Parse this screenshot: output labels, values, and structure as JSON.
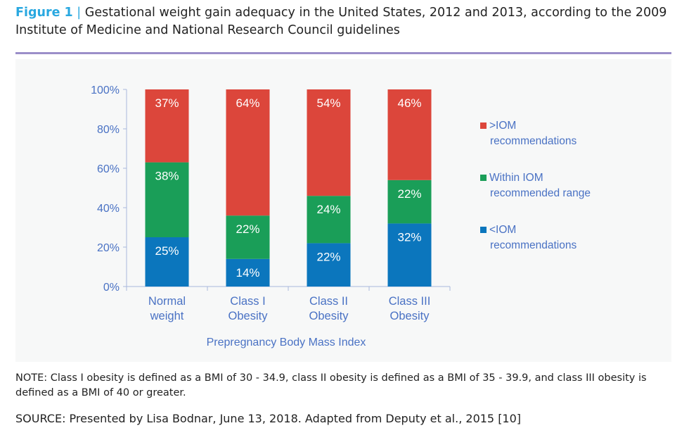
{
  "header": {
    "figure_label": "Figure 1",
    "separator": "|",
    "title": "Gestational weight gain adequacy in the United States, 2012 and 2013, according to the 2009 Institute of Medicine and National Research Council guidelines"
  },
  "chart_data": {
    "type": "bar",
    "stacked": true,
    "categories": [
      [
        "Normal",
        "weight"
      ],
      [
        "Class I",
        "Obesity"
      ],
      [
        "Class II",
        "Obesity"
      ],
      [
        "Class III",
        "Obesity"
      ]
    ],
    "series": [
      {
        "name": "<IOM recommendations",
        "legend_lines": [
          "<IOM",
          "recommendations"
        ],
        "color": "#0b76bd",
        "values": [
          25,
          14,
          22,
          32
        ]
      },
      {
        "name": "Within IOM recommended range",
        "legend_lines": [
          "Within IOM",
          "recommended range"
        ],
        "color": "#1a9e58",
        "values": [
          38,
          22,
          24,
          22
        ]
      },
      {
        "name": ">IOM recommendations",
        "legend_lines": [
          ">IOM",
          "recommendations"
        ],
        "color": "#dc463b",
        "values": [
          37,
          64,
          54,
          46
        ]
      }
    ],
    "xlabel": "Prepregnancy Body Mass Index",
    "ylabel": "",
    "ylim": [
      0,
      100
    ],
    "yticks": [
      "0%",
      "20%",
      "40%",
      "60%",
      "80%",
      "100%"
    ],
    "legend": "right",
    "grid": false
  },
  "note": "NOTE: Class I obesity is defined as a BMI of 30 - 34.9, class II obesity is defined as a BMI of 35 - 39.9, and class III obesity is defined as a BMI of 40 or greater.",
  "source": "SOURCE: Presented by Lisa Bodnar, June 13, 2018. Adapted from Deputy et al., 2015 [10]"
}
